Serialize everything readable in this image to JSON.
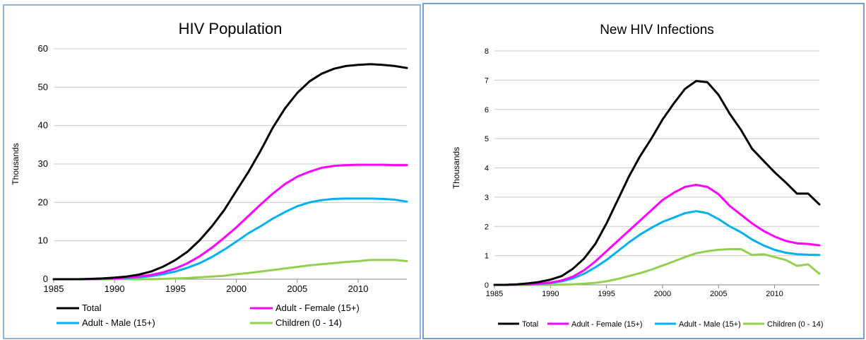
{
  "chart_data": [
    {
      "type": "line",
      "title": "HIV Population",
      "xlabel": "",
      "ylabel": "Thousands",
      "xlim": [
        1985,
        2014
      ],
      "ylim": [
        0,
        60
      ],
      "xticks": [
        "1985",
        "1990",
        "1995",
        "2000",
        "2005",
        "2010"
      ],
      "yticks": [
        "0",
        "10",
        "20",
        "30",
        "40",
        "50",
        "60"
      ],
      "grid": "horizontal",
      "legend": "bottom",
      "x": [
        1985,
        1986,
        1987,
        1988,
        1989,
        1990,
        1991,
        1992,
        1993,
        1994,
        1995,
        1996,
        1997,
        1998,
        1999,
        2000,
        2001,
        2002,
        2003,
        2004,
        2005,
        2006,
        2007,
        2008,
        2009,
        2010,
        2011,
        2012,
        2013,
        2014
      ],
      "series": [
        {
          "name": "Total",
          "color": "#000000",
          "values": [
            0,
            0,
            0,
            0.1,
            0.2,
            0.4,
            0.7,
            1.2,
            2,
            3.3,
            5,
            7.2,
            10.2,
            13.8,
            18,
            23,
            28,
            33.5,
            39.5,
            44.5,
            48.5,
            51.5,
            53.5,
            54.8,
            55.5,
            55.8,
            56,
            55.8,
            55.5,
            55
          ]
        },
        {
          "name": "Adult - Female (15+)",
          "color": "#ff00ff",
          "values": [
            0,
            0,
            0,
            0,
            0.1,
            0.2,
            0.4,
            0.7,
            1.1,
            1.8,
            2.8,
            4.2,
            6,
            8.2,
            10.8,
            13.5,
            16.5,
            19.5,
            22.3,
            24.8,
            26.7,
            28,
            29,
            29.5,
            29.7,
            29.8,
            29.8,
            29.8,
            29.7,
            29.7
          ]
        },
        {
          "name": "Adult - Male (15+)",
          "color": "#00b0f0",
          "values": [
            0,
            0,
            0,
            0,
            0.1,
            0.2,
            0.3,
            0.5,
            0.8,
            1.3,
            2,
            3,
            4.2,
            5.8,
            7.7,
            9.8,
            12,
            13.8,
            15.8,
            17.5,
            19,
            20,
            20.6,
            20.9,
            21,
            21,
            21,
            20.9,
            20.7,
            20.2
          ]
        },
        {
          "name": "Children (0 - 14)",
          "color": "#92d050",
          "values": [
            0,
            0,
            0,
            0,
            0,
            0,
            0,
            0,
            0,
            0.1,
            0.2,
            0.3,
            0.5,
            0.7,
            0.9,
            1.3,
            1.6,
            2,
            2.4,
            2.8,
            3.2,
            3.6,
            3.9,
            4.2,
            4.5,
            4.7,
            5,
            5,
            5,
            4.7
          ]
        }
      ]
    },
    {
      "type": "line",
      "title": "New HIV Infections",
      "xlabel": "",
      "ylabel": "Thousands",
      "xlim": [
        1985,
        2014
      ],
      "ylim": [
        0,
        8
      ],
      "xticks": [
        "1985",
        "1990",
        "1995",
        "2000",
        "2005",
        "2010"
      ],
      "yticks": [
        "0",
        "1",
        "2",
        "3",
        "4",
        "5",
        "6",
        "7",
        "8"
      ],
      "grid": "horizontal",
      "legend": "bottom",
      "x": [
        1985,
        1986,
        1987,
        1988,
        1989,
        1990,
        1991,
        1992,
        1993,
        1994,
        1995,
        1996,
        1997,
        1998,
        1999,
        2000,
        2001,
        2002,
        2003,
        2004,
        2005,
        2006,
        2007,
        2008,
        2009,
        2010,
        2011,
        2012,
        2013,
        2014
      ],
      "series": [
        {
          "name": "Total",
          "color": "#000000",
          "values": [
            0,
            0,
            0.02,
            0.05,
            0.1,
            0.18,
            0.3,
            0.55,
            0.9,
            1.4,
            2.1,
            2.9,
            3.7,
            4.4,
            5,
            5.65,
            6.2,
            6.7,
            6.97,
            6.93,
            6.5,
            5.85,
            5.3,
            4.65,
            4.25,
            3.85,
            3.5,
            3.12,
            3.12,
            2.75
          ]
        },
        {
          "name": "Adult - Female (15+)",
          "color": "#ff00ff",
          "values": [
            0,
            0,
            0.01,
            0.02,
            0.04,
            0.08,
            0.15,
            0.28,
            0.5,
            0.8,
            1.15,
            1.5,
            1.85,
            2.2,
            2.55,
            2.9,
            3.15,
            3.35,
            3.42,
            3.35,
            3.1,
            2.7,
            2.4,
            2.1,
            1.85,
            1.65,
            1.5,
            1.42,
            1.4,
            1.35
          ]
        },
        {
          "name": "Adult - Male (15+)",
          "color": "#00b0f0",
          "values": [
            0,
            0,
            0.01,
            0.02,
            0.03,
            0.06,
            0.12,
            0.22,
            0.38,
            0.6,
            0.85,
            1.15,
            1.45,
            1.72,
            1.95,
            2.15,
            2.3,
            2.45,
            2.52,
            2.45,
            2.25,
            2,
            1.8,
            1.55,
            1.35,
            1.2,
            1.1,
            1.05,
            1.03,
            1.02
          ]
        },
        {
          "name": "Children (0 - 14)",
          "color": "#92d050",
          "values": [
            0,
            0,
            0,
            0,
            0,
            0,
            0.01,
            0.02,
            0.04,
            0.07,
            0.12,
            0.2,
            0.3,
            0.4,
            0.52,
            0.66,
            0.8,
            0.95,
            1.08,
            1.15,
            1.2,
            1.22,
            1.22,
            1.02,
            1.05,
            0.95,
            0.85,
            0.65,
            0.7,
            0.38
          ]
        }
      ]
    }
  ]
}
